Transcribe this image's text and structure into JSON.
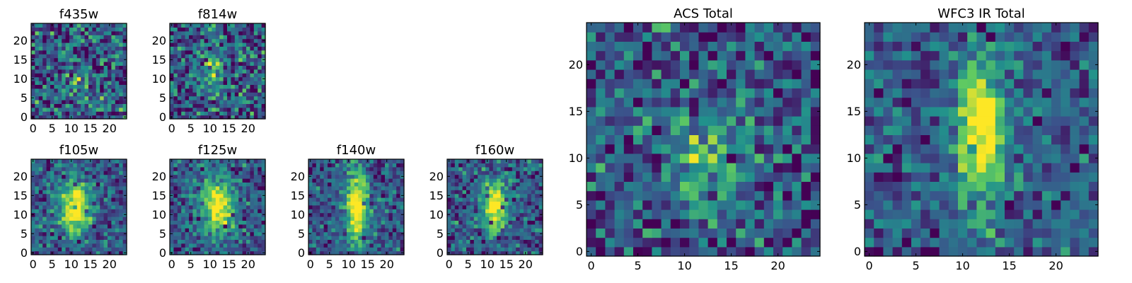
{
  "chart_data": [
    {
      "type": "heatmap",
      "title": "f435w",
      "grid_size": 25,
      "xlim": [
        0,
        25
      ],
      "ylim": [
        0,
        25
      ],
      "xticks": [
        0,
        5,
        10,
        15,
        20
      ],
      "yticks": [
        0,
        5,
        10,
        15,
        20
      ],
      "source_peak": [
        12,
        9
      ],
      "source_sigma": [
        2.5,
        2.5
      ],
      "source_strength": 0.25,
      "noise_level": 0.7,
      "seed": 11
    },
    {
      "type": "heatmap",
      "title": "f814w",
      "grid_size": 25,
      "xlim": [
        0,
        25
      ],
      "ylim": [
        0,
        25
      ],
      "xticks": [
        0,
        5,
        10,
        15,
        20
      ],
      "yticks": [
        0,
        5,
        10,
        15,
        20
      ],
      "source_peak": [
        11,
        12
      ],
      "source_sigma": [
        2.5,
        4.0
      ],
      "source_strength": 0.35,
      "noise_level": 0.65,
      "seed": 23
    },
    {
      "type": "heatmap",
      "title": "f105w",
      "grid_size": 25,
      "xlim": [
        0,
        25
      ],
      "ylim": [
        0,
        25
      ],
      "xticks": [
        0,
        5,
        10,
        15,
        20
      ],
      "yticks": [
        0,
        5,
        10,
        15,
        20
      ],
      "source_peak": [
        11,
        12
      ],
      "source_sigma": [
        3.0,
        5.0
      ],
      "source_strength": 0.75,
      "noise_level": 0.45,
      "seed": 37
    },
    {
      "type": "heatmap",
      "title": "f125w",
      "grid_size": 25,
      "xlim": [
        0,
        25
      ],
      "ylim": [
        0,
        25
      ],
      "xticks": [
        0,
        5,
        10,
        15,
        20
      ],
      "yticks": [
        0,
        5,
        10,
        15,
        20
      ],
      "source_peak": [
        12,
        12
      ],
      "source_sigma": [
        3.0,
        5.0
      ],
      "source_strength": 0.75,
      "noise_level": 0.45,
      "seed": 41
    },
    {
      "type": "heatmap",
      "title": "f140w",
      "grid_size": 25,
      "xlim": [
        0,
        25
      ],
      "ylim": [
        0,
        25
      ],
      "xticks": [
        0,
        5,
        10,
        15,
        20
      ],
      "yticks": [
        0,
        5,
        10,
        15,
        20
      ],
      "source_peak": [
        12,
        12
      ],
      "source_sigma": [
        2.0,
        7.0
      ],
      "source_strength": 0.8,
      "noise_level": 0.45,
      "seed": 53
    },
    {
      "type": "heatmap",
      "title": "f160w",
      "grid_size": 25,
      "xlim": [
        0,
        25
      ],
      "ylim": [
        0,
        25
      ],
      "xticks": [
        0,
        5,
        10,
        15,
        20
      ],
      "yticks": [
        0,
        5,
        10,
        15,
        20
      ],
      "source_peak": [
        12,
        12
      ],
      "source_sigma": [
        2.5,
        5.0
      ],
      "source_strength": 0.75,
      "noise_level": 0.5,
      "seed": 67
    },
    {
      "type": "heatmap",
      "title": "ACS Total",
      "grid_size": 25,
      "xlim": [
        0,
        25
      ],
      "ylim": [
        0,
        25
      ],
      "xticks": [
        0,
        5,
        10,
        15,
        20
      ],
      "yticks": [
        0,
        5,
        10,
        15,
        20
      ],
      "source_peak": [
        13,
        10
      ],
      "source_sigma": [
        2.5,
        3.5
      ],
      "source_strength": 0.35,
      "noise_level": 0.6,
      "seed": 79
    },
    {
      "type": "heatmap",
      "title": "WFC3 IR Total",
      "grid_size": 25,
      "xlim": [
        0,
        25
      ],
      "ylim": [
        0,
        25
      ],
      "xticks": [
        0,
        5,
        10,
        15,
        20
      ],
      "yticks": [
        0,
        5,
        10,
        15,
        20
      ],
      "source_peak": [
        12,
        13
      ],
      "source_sigma": [
        1.8,
        5.5
      ],
      "source_strength": 0.8,
      "noise_level": 0.45,
      "seed": 97
    }
  ],
  "colormap": [
    "#440154",
    "#3b528b",
    "#21918c",
    "#5ec962",
    "#fde725"
  ]
}
